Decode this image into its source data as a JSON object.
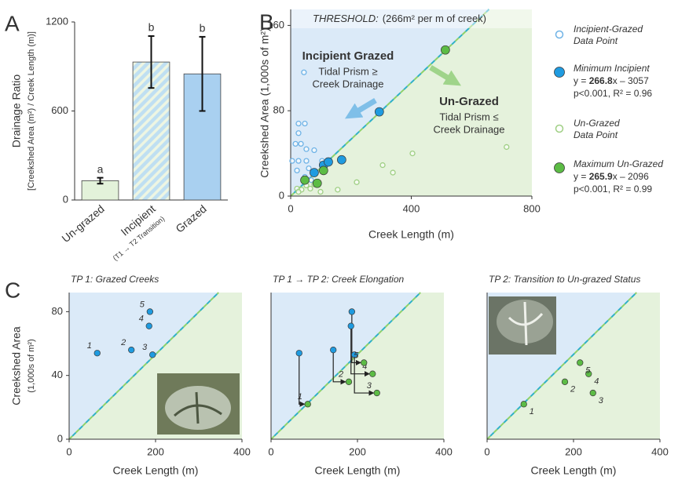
{
  "chart_data": [
    {
      "type": "bar",
      "panel_label": "A",
      "categories": [
        "Un-grazed",
        "Incipient",
        "Grazed"
      ],
      "incipient_note": "(T1 → T2 Transition)",
      "values": [
        130,
        930,
        850
      ],
      "errors": [
        20,
        175,
        250
      ],
      "annotations": [
        "a",
        "b",
        "b"
      ],
      "colors": [
        "#e3f2da",
        "#bfdff2",
        "#a9d0f0"
      ],
      "hatch": [
        false,
        true,
        false
      ],
      "ylabel": "Drainage Ratio",
      "ylabel_sub": "[Creekshed Area (m²) / Creek Length (m)]",
      "ylim": [
        0,
        1200
      ],
      "yticks": [
        0,
        600,
        1200
      ]
    },
    {
      "type": "scatter",
      "panel_label": "B",
      "threshold_label": "THRESHOLD:",
      "threshold": {
        "value": 266,
        "label": "(266m² per m of creek)"
      },
      "xlabel": "Creek Length (m)",
      "ylabel": "Creekshed Area (1,000s of m²)",
      "xlim": [
        0,
        800
      ],
      "ylim": [
        0,
        175
      ],
      "xticks": [
        0,
        400,
        800
      ],
      "yticks": [
        0,
        80,
        160
      ],
      "regions": [
        {
          "title": "Incipient Grazed",
          "lines": [
            "Tidal Prism ≥",
            "Creek Drainage"
          ]
        },
        {
          "title": "Un-Grazed",
          "lines": [
            "Tidal Prism ≤",
            "Creek Drainage"
          ]
        }
      ],
      "series": [
        {
          "name": "Incipient-Grazed",
          "name_2": "Data Point",
          "color": "#6fb3e6",
          "style": "open",
          "x": [
            44,
            26,
            47,
            16,
            34,
            52,
            78,
            26,
            52,
            5,
            21,
            60,
            104,
            47,
            68,
            26,
            109
          ],
          "values": [
            116,
            68,
            68,
            49,
            49,
            44,
            43,
            33,
            33,
            33,
            24,
            26,
            33,
            18,
            15,
            59,
            26
          ]
        },
        {
          "name": "Minimum Incipient",
          "color": "#1f9be0",
          "style": "filled",
          "eq": [
            "y = ",
            "266.8",
            "x – 3057"
          ],
          "stats": "p<0.001, R² = 0.96",
          "x": [
            78,
            109,
            125,
            169,
            294
          ],
          "values": [
            22,
            29,
            32,
            34,
            79
          ]
        },
        {
          "name": "Un-Grazed",
          "name_2": "Data Point",
          "color": "#9fcf84",
          "style": "open",
          "x": [
            339,
            404,
            305,
            219,
            716,
            21,
            36,
            52,
            65,
            26,
            78,
            99,
            156
          ],
          "values": [
            22,
            40,
            29,
            13,
            46,
            7,
            6,
            10,
            7,
            4,
            11,
            4,
            6
          ]
        },
        {
          "name": "Maximum Un-Grazed",
          "color": "#5cbc45",
          "style": "filled",
          "eq": [
            "y = ",
            "265.9",
            "x – 2096"
          ],
          "stats": "p<0.001, R² = 0.99",
          "x": [
            513,
            109,
            47,
            88
          ],
          "values": [
            137,
            24,
            15,
            12
          ]
        }
      ]
    },
    {
      "type": "scatter",
      "panel_label": "C",
      "title": "TP 1: Grazed Creeks",
      "ylabel": "Creekshed Area",
      "ylabel_sub": "(1,000s of m²)",
      "xlabel": "Creek Length (m)",
      "xlim": [
        0,
        400
      ],
      "ylim": [
        0,
        92
      ],
      "xticks": [
        0,
        200,
        400
      ],
      "yticks": [
        0,
        40,
        80
      ],
      "series": [
        {
          "color": "#1f9be0",
          "style": "filled",
          "x": [
            65,
            144,
            193,
            185,
            187
          ],
          "values": [
            54,
            56,
            53,
            71,
            80
          ],
          "point_labels": [
            "1",
            "2",
            "3",
            "4",
            "5"
          ]
        }
      ]
    },
    {
      "type": "scatter",
      "title": "TP 1 → TP 2: Creek Elongation",
      "xlabel": "Creek Length (m)",
      "arrows": true,
      "xlim": [
        0,
        400
      ],
      "ylim": [
        0,
        92
      ],
      "xticks": [
        0,
        200,
        400
      ],
      "series": [
        {
          "color": "#1f9be0",
          "style": "filled",
          "x": [
            65,
            144,
            193,
            185,
            187
          ],
          "values": [
            54,
            56,
            53,
            71,
            80
          ]
        },
        {
          "color": "#5cbc45",
          "style": "filled",
          "x": [
            85,
            180,
            245,
            235,
            215
          ],
          "values": [
            22,
            36,
            29,
            41,
            48
          ],
          "point_labels": [
            "1",
            "2",
            "3",
            "4",
            "5"
          ]
        }
      ]
    },
    {
      "type": "scatter",
      "title": "TP 2: Transition to Un-grazed Status",
      "xlabel": "Creek Length (m)",
      "xlim": [
        0,
        400
      ],
      "ylim": [
        0,
        92
      ],
      "xticks": [
        0,
        200,
        400
      ],
      "series": [
        {
          "color": "#5cbc45",
          "style": "filled",
          "x": [
            85,
            180,
            245,
            235,
            215
          ],
          "values": [
            22,
            36,
            29,
            41,
            48
          ],
          "point_labels": [
            "1",
            "2",
            "3",
            "4",
            "5"
          ]
        }
      ]
    }
  ]
}
